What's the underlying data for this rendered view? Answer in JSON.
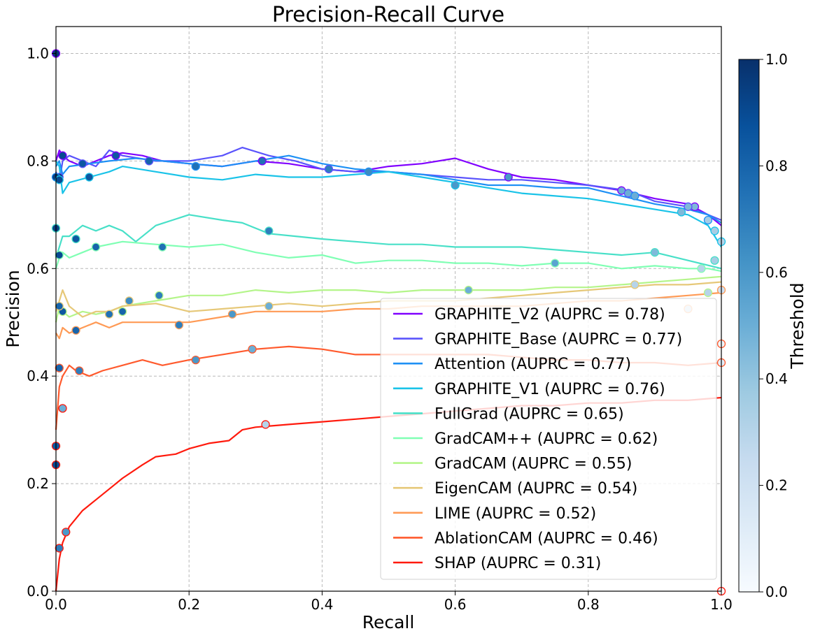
{
  "chart_data": {
    "type": "line",
    "title": "Precision-Recall Curve",
    "xlabel": "Recall",
    "ylabel": "Precision",
    "xlim": [
      0.0,
      1.0
    ],
    "ylim": [
      0.0,
      1.05
    ],
    "x_ticks": [
      "0.0",
      "0.2",
      "0.4",
      "0.6",
      "0.8",
      "1.0"
    ],
    "y_ticks": [
      "0.0",
      "0.2",
      "0.4",
      "0.6",
      "0.8",
      "1.0"
    ],
    "grid": true,
    "legend_position": "lower-right",
    "colorbar": {
      "label": "Threshold",
      "range": [
        0.0,
        1.0
      ],
      "ticks": [
        "0.0",
        "0.2",
        "0.4",
        "0.6",
        "0.8",
        "1.0"
      ],
      "colormap": "Blues"
    },
    "series": [
      {
        "name": "GRAPHITE_V2",
        "legend": "GRAPHITE_V2 (AUPRC = 0.78)",
        "color": "#8000ff",
        "x": [
          0.0,
          0.005,
          0.01,
          0.02,
          0.04,
          0.06,
          0.08,
          0.1,
          0.13,
          0.16,
          0.2,
          0.25,
          0.3,
          0.35,
          0.4,
          0.45,
          0.5,
          0.55,
          0.6,
          0.65,
          0.7,
          0.75,
          0.8,
          0.85,
          0.9,
          0.95,
          0.98,
          1.0
        ],
        "y": [
          0.8,
          0.82,
          0.81,
          0.8,
          0.79,
          0.8,
          0.81,
          0.815,
          0.81,
          0.8,
          0.795,
          0.79,
          0.8,
          0.795,
          0.785,
          0.78,
          0.79,
          0.795,
          0.805,
          0.785,
          0.77,
          0.765,
          0.755,
          0.745,
          0.73,
          0.72,
          0.7,
          0.68
        ],
        "markers": [
          [
            0.0,
            1.0,
            0.98
          ],
          [
            0.01,
            0.81,
            0.9
          ],
          [
            0.09,
            0.81,
            0.85
          ],
          [
            0.31,
            0.8,
            0.75
          ],
          [
            0.68,
            0.77,
            0.6
          ],
          [
            0.85,
            0.745,
            0.5
          ],
          [
            0.96,
            0.715,
            0.45
          ]
        ]
      },
      {
        "name": "GRAPHITE_Base",
        "legend": "GRAPHITE_Base (AUPRC = 0.77)",
        "color": "#5a53fc",
        "x": [
          0.0,
          0.005,
          0.01,
          0.02,
          0.04,
          0.06,
          0.08,
          0.1,
          0.15,
          0.2,
          0.25,
          0.28,
          0.32,
          0.36,
          0.4,
          0.45,
          0.5,
          0.55,
          0.6,
          0.65,
          0.7,
          0.75,
          0.8,
          0.86,
          0.9,
          0.95,
          0.98,
          1.0
        ],
        "y": [
          0.78,
          0.76,
          0.8,
          0.81,
          0.8,
          0.79,
          0.82,
          0.81,
          0.8,
          0.8,
          0.81,
          0.825,
          0.81,
          0.8,
          0.785,
          0.78,
          0.78,
          0.775,
          0.77,
          0.765,
          0.765,
          0.76,
          0.755,
          0.745,
          0.725,
          0.715,
          0.7,
          0.69
        ],
        "markers": [
          [
            0.005,
            0.77,
            0.95
          ],
          [
            0.04,
            0.795,
            0.85
          ],
          [
            0.14,
            0.8,
            0.8
          ],
          [
            0.41,
            0.785,
            0.7
          ],
          [
            0.86,
            0.74,
            0.5
          ],
          [
            0.95,
            0.715,
            0.45
          ]
        ]
      },
      {
        "name": "Attention",
        "legend": "Attention (AUPRC = 0.77)",
        "color": "#1e90f5",
        "x": [
          0.0,
          0.005,
          0.01,
          0.02,
          0.05,
          0.08,
          0.12,
          0.16,
          0.2,
          0.25,
          0.3,
          0.35,
          0.4,
          0.45,
          0.5,
          0.55,
          0.6,
          0.65,
          0.7,
          0.75,
          0.8,
          0.85,
          0.9,
          0.95,
          0.98,
          1.0
        ],
        "y": [
          0.79,
          0.8,
          0.775,
          0.79,
          0.795,
          0.8,
          0.805,
          0.8,
          0.795,
          0.79,
          0.8,
          0.81,
          0.795,
          0.785,
          0.78,
          0.775,
          0.765,
          0.755,
          0.755,
          0.75,
          0.75,
          0.735,
          0.72,
          0.71,
          0.7,
          0.685
        ],
        "markers": [
          [
            0.0,
            0.77,
            0.95
          ],
          [
            0.21,
            0.79,
            0.75
          ],
          [
            0.47,
            0.78,
            0.65
          ],
          [
            0.87,
            0.735,
            0.5
          ],
          [
            0.98,
            0.69,
            0.35
          ]
        ]
      },
      {
        "name": "GRAPHITE_V1",
        "legend": "GRAPHITE_V1 (AUPRC = 0.76)",
        "color": "#1ac3e8",
        "x": [
          0.0,
          0.005,
          0.01,
          0.02,
          0.05,
          0.08,
          0.1,
          0.15,
          0.2,
          0.25,
          0.3,
          0.35,
          0.4,
          0.45,
          0.5,
          0.55,
          0.6,
          0.65,
          0.7,
          0.75,
          0.8,
          0.85,
          0.9,
          0.95,
          0.98,
          1.0
        ],
        "y": [
          0.8,
          0.79,
          0.74,
          0.76,
          0.77,
          0.78,
          0.79,
          0.78,
          0.77,
          0.765,
          0.775,
          0.77,
          0.77,
          0.775,
          0.78,
          0.77,
          0.76,
          0.75,
          0.74,
          0.735,
          0.73,
          0.72,
          0.71,
          0.7,
          0.68,
          0.64
        ],
        "markers": [
          [
            0.005,
            0.765,
            0.9
          ],
          [
            0.05,
            0.77,
            0.85
          ],
          [
            0.6,
            0.755,
            0.6
          ],
          [
            0.94,
            0.705,
            0.45
          ],
          [
            0.99,
            0.67,
            0.35
          ],
          [
            1.0,
            0.65,
            0.3
          ]
        ]
      },
      {
        "name": "FullGrad",
        "legend": "FullGrad (AUPRC = 0.65)",
        "color": "#48e0c8",
        "x": [
          0.0,
          0.005,
          0.01,
          0.02,
          0.04,
          0.06,
          0.08,
          0.1,
          0.12,
          0.15,
          0.2,
          0.25,
          0.28,
          0.32,
          0.36,
          0.4,
          0.45,
          0.5,
          0.55,
          0.6,
          0.65,
          0.7,
          0.75,
          0.8,
          0.85,
          0.9,
          0.95,
          1.0
        ],
        "y": [
          0.62,
          0.64,
          0.66,
          0.66,
          0.68,
          0.67,
          0.68,
          0.67,
          0.65,
          0.68,
          0.7,
          0.69,
          0.685,
          0.665,
          0.66,
          0.655,
          0.65,
          0.645,
          0.645,
          0.64,
          0.64,
          0.64,
          0.635,
          0.63,
          0.625,
          0.63,
          0.615,
          0.6
        ],
        "markers": [
          [
            0.0,
            0.675,
            0.95
          ],
          [
            0.03,
            0.655,
            0.85
          ],
          [
            0.32,
            0.67,
            0.7
          ],
          [
            0.9,
            0.63,
            0.45
          ],
          [
            0.99,
            0.615,
            0.35
          ]
        ]
      },
      {
        "name": "GradCAM++",
        "legend": "GradCAM++ (AUPRC = 0.62)",
        "color": "#80ffb4",
        "x": [
          0.0,
          0.005,
          0.01,
          0.02,
          0.04,
          0.06,
          0.1,
          0.15,
          0.2,
          0.25,
          0.3,
          0.35,
          0.4,
          0.45,
          0.5,
          0.55,
          0.6,
          0.65,
          0.7,
          0.75,
          0.8,
          0.85,
          0.9,
          0.95,
          0.98,
          1.0
        ],
        "y": [
          0.6,
          0.62,
          0.63,
          0.62,
          0.63,
          0.64,
          0.65,
          0.645,
          0.64,
          0.645,
          0.63,
          0.62,
          0.625,
          0.61,
          0.615,
          0.615,
          0.61,
          0.61,
          0.605,
          0.61,
          0.61,
          0.6,
          0.605,
          0.6,
          0.6,
          0.595
        ],
        "markers": [
          [
            0.005,
            0.625,
            0.9
          ],
          [
            0.06,
            0.64,
            0.8
          ],
          [
            0.16,
            0.64,
            0.75
          ],
          [
            0.75,
            0.61,
            0.55
          ],
          [
            0.97,
            0.6,
            0.3
          ]
        ]
      },
      {
        "name": "GradCAM",
        "legend": "GradCAM (AUPRC = 0.55)",
        "color": "#b4f58a",
        "x": [
          0.0,
          0.005,
          0.01,
          0.02,
          0.04,
          0.06,
          0.08,
          0.1,
          0.15,
          0.2,
          0.25,
          0.3,
          0.35,
          0.4,
          0.45,
          0.5,
          0.55,
          0.6,
          0.65,
          0.7,
          0.75,
          0.8,
          0.85,
          0.9,
          0.95,
          1.0
        ],
        "y": [
          0.5,
          0.53,
          0.52,
          0.51,
          0.52,
          0.515,
          0.52,
          0.53,
          0.54,
          0.55,
          0.55,
          0.56,
          0.555,
          0.56,
          0.56,
          0.555,
          0.56,
          0.56,
          0.56,
          0.56,
          0.565,
          0.565,
          0.57,
          0.575,
          0.58,
          0.585
        ],
        "markers": [
          [
            0.01,
            0.52,
            0.85
          ],
          [
            0.1,
            0.52,
            0.8
          ],
          [
            0.155,
            0.55,
            0.7
          ],
          [
            0.62,
            0.56,
            0.5
          ],
          [
            0.98,
            0.555,
            0.3
          ]
        ]
      },
      {
        "name": "EigenCAM",
        "legend": "EigenCAM (AUPRC = 0.54)",
        "color": "#e6c878",
        "x": [
          0.0,
          0.005,
          0.01,
          0.02,
          0.04,
          0.06,
          0.08,
          0.1,
          0.15,
          0.2,
          0.25,
          0.3,
          0.35,
          0.4,
          0.45,
          0.5,
          0.55,
          0.6,
          0.65,
          0.7,
          0.75,
          0.8,
          0.85,
          0.9,
          0.95,
          1.0
        ],
        "y": [
          0.52,
          0.54,
          0.56,
          0.53,
          0.51,
          0.52,
          0.52,
          0.53,
          0.535,
          0.52,
          0.525,
          0.53,
          0.535,
          0.53,
          0.535,
          0.54,
          0.54,
          0.54,
          0.545,
          0.55,
          0.555,
          0.56,
          0.565,
          0.57,
          0.57,
          0.575
        ],
        "markers": [
          [
            0.005,
            0.53,
            0.8
          ],
          [
            0.08,
            0.515,
            0.75
          ],
          [
            0.11,
            0.54,
            0.65
          ],
          [
            0.32,
            0.53,
            0.5
          ],
          [
            0.87,
            0.57,
            0.3
          ]
        ]
      },
      {
        "name": "LIME",
        "legend": "LIME (AUPRC = 0.52)",
        "color": "#ff9a55",
        "x": [
          0.0,
          0.005,
          0.01,
          0.02,
          0.04,
          0.06,
          0.08,
          0.1,
          0.15,
          0.2,
          0.25,
          0.3,
          0.35,
          0.4,
          0.45,
          0.5,
          0.55,
          0.6,
          0.65,
          0.7,
          0.75,
          0.8,
          0.85,
          0.9,
          0.95,
          1.0
        ],
        "y": [
          0.48,
          0.47,
          0.49,
          0.48,
          0.49,
          0.5,
          0.49,
          0.5,
          0.5,
          0.5,
          0.51,
          0.52,
          0.52,
          0.52,
          0.525,
          0.525,
          0.53,
          0.53,
          0.53,
          0.53,
          0.535,
          0.54,
          0.54,
          0.545,
          0.55,
          0.555
        ],
        "markers": [
          [
            0.03,
            0.485,
            0.8
          ],
          [
            0.185,
            0.495,
            0.7
          ],
          [
            0.265,
            0.515,
            0.6
          ],
          [
            0.95,
            0.525,
            0.25
          ],
          [
            1.0,
            0.56,
            0.2
          ]
        ]
      },
      {
        "name": "AblationCAM",
        "legend": "AblationCAM (AUPRC = 0.46)",
        "color": "#ff5a2d",
        "x": [
          0.0,
          0.005,
          0.01,
          0.02,
          0.03,
          0.05,
          0.07,
          0.1,
          0.13,
          0.16,
          0.2,
          0.25,
          0.3,
          0.35,
          0.4,
          0.45,
          0.5,
          0.55,
          0.6,
          0.65,
          0.7,
          0.75,
          0.8,
          0.85,
          0.9,
          0.95,
          1.0
        ],
        "y": [
          0.3,
          0.38,
          0.4,
          0.42,
          0.41,
          0.4,
          0.41,
          0.42,
          0.43,
          0.42,
          0.43,
          0.44,
          0.45,
          0.455,
          0.45,
          0.44,
          0.44,
          0.44,
          0.44,
          0.44,
          0.435,
          0.43,
          0.43,
          0.425,
          0.425,
          0.42,
          0.425
        ],
        "markers": [
          [
            0.005,
            0.415,
            0.8
          ],
          [
            0.035,
            0.41,
            0.7
          ],
          [
            0.21,
            0.43,
            0.6
          ],
          [
            0.295,
            0.45,
            0.5
          ],
          [
            1.0,
            0.425,
            0.1
          ],
          [
            1.0,
            0.46,
            0.05
          ]
        ]
      },
      {
        "name": "SHAP",
        "legend": "SHAP (AUPRC = 0.31)",
        "color": "#ff1a0d",
        "x": [
          0.0,
          0.005,
          0.01,
          0.02,
          0.04,
          0.06,
          0.08,
          0.1,
          0.13,
          0.15,
          0.18,
          0.2,
          0.23,
          0.26,
          0.28,
          0.3,
          0.35,
          0.4,
          0.45,
          0.5,
          0.55,
          0.6,
          0.65,
          0.7,
          0.75,
          0.8,
          0.85,
          0.9,
          0.95,
          1.0
        ],
        "y": [
          0.0,
          0.06,
          0.09,
          0.12,
          0.15,
          0.17,
          0.19,
          0.21,
          0.235,
          0.25,
          0.255,
          0.265,
          0.275,
          0.28,
          0.3,
          0.305,
          0.31,
          0.315,
          0.32,
          0.325,
          0.33,
          0.335,
          0.34,
          0.345,
          0.345,
          0.35,
          0.35,
          0.355,
          0.355,
          0.36
        ],
        "markers": [
          [
            0.0,
            0.235,
            0.9
          ],
          [
            0.0,
            0.27,
            0.85
          ],
          [
            0.005,
            0.08,
            0.7
          ],
          [
            0.015,
            0.11,
            0.6
          ],
          [
            0.01,
            0.34,
            0.5
          ],
          [
            0.315,
            0.31,
            0.3
          ],
          [
            1.0,
            0.0,
            0.0
          ]
        ]
      }
    ]
  }
}
